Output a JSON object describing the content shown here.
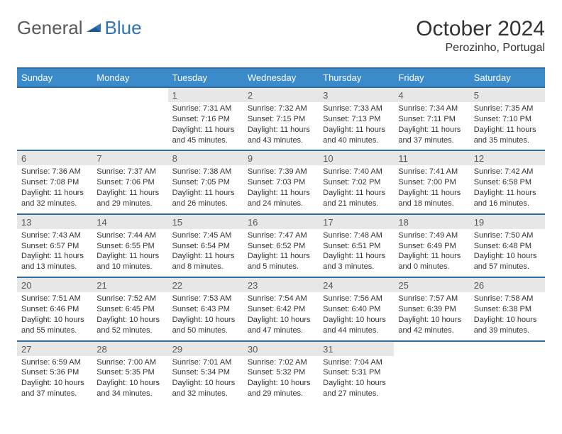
{
  "logo": {
    "word1": "General",
    "word2": "Blue"
  },
  "header": {
    "month_title": "October 2024",
    "location": "Perozinho, Portugal"
  },
  "colors": {
    "header_bg": "#3b8bcb",
    "header_border": "#2f6da3",
    "daynum_bg": "#e7e7e7",
    "text": "#333333",
    "logo_gray": "#5a5a5a",
    "logo_blue": "#2f75b5"
  },
  "days_of_week": [
    "Sunday",
    "Monday",
    "Tuesday",
    "Wednesday",
    "Thursday",
    "Friday",
    "Saturday"
  ],
  "weeks": [
    {
      "cells": [
        {
          "empty": true
        },
        {
          "empty": true
        },
        {
          "num": "1",
          "sunrise": "Sunrise: 7:31 AM",
          "sunset": "Sunset: 7:16 PM",
          "daylight": "Daylight: 11 hours and 45 minutes."
        },
        {
          "num": "2",
          "sunrise": "Sunrise: 7:32 AM",
          "sunset": "Sunset: 7:15 PM",
          "daylight": "Daylight: 11 hours and 43 minutes."
        },
        {
          "num": "3",
          "sunrise": "Sunrise: 7:33 AM",
          "sunset": "Sunset: 7:13 PM",
          "daylight": "Daylight: 11 hours and 40 minutes."
        },
        {
          "num": "4",
          "sunrise": "Sunrise: 7:34 AM",
          "sunset": "Sunset: 7:11 PM",
          "daylight": "Daylight: 11 hours and 37 minutes."
        },
        {
          "num": "5",
          "sunrise": "Sunrise: 7:35 AM",
          "sunset": "Sunset: 7:10 PM",
          "daylight": "Daylight: 11 hours and 35 minutes."
        }
      ]
    },
    {
      "cells": [
        {
          "num": "6",
          "sunrise": "Sunrise: 7:36 AM",
          "sunset": "Sunset: 7:08 PM",
          "daylight": "Daylight: 11 hours and 32 minutes."
        },
        {
          "num": "7",
          "sunrise": "Sunrise: 7:37 AM",
          "sunset": "Sunset: 7:06 PM",
          "daylight": "Daylight: 11 hours and 29 minutes."
        },
        {
          "num": "8",
          "sunrise": "Sunrise: 7:38 AM",
          "sunset": "Sunset: 7:05 PM",
          "daylight": "Daylight: 11 hours and 26 minutes."
        },
        {
          "num": "9",
          "sunrise": "Sunrise: 7:39 AM",
          "sunset": "Sunset: 7:03 PM",
          "daylight": "Daylight: 11 hours and 24 minutes."
        },
        {
          "num": "10",
          "sunrise": "Sunrise: 7:40 AM",
          "sunset": "Sunset: 7:02 PM",
          "daylight": "Daylight: 11 hours and 21 minutes."
        },
        {
          "num": "11",
          "sunrise": "Sunrise: 7:41 AM",
          "sunset": "Sunset: 7:00 PM",
          "daylight": "Daylight: 11 hours and 18 minutes."
        },
        {
          "num": "12",
          "sunrise": "Sunrise: 7:42 AM",
          "sunset": "Sunset: 6:58 PM",
          "daylight": "Daylight: 11 hours and 16 minutes."
        }
      ]
    },
    {
      "cells": [
        {
          "num": "13",
          "sunrise": "Sunrise: 7:43 AM",
          "sunset": "Sunset: 6:57 PM",
          "daylight": "Daylight: 11 hours and 13 minutes."
        },
        {
          "num": "14",
          "sunrise": "Sunrise: 7:44 AM",
          "sunset": "Sunset: 6:55 PM",
          "daylight": "Daylight: 11 hours and 10 minutes."
        },
        {
          "num": "15",
          "sunrise": "Sunrise: 7:45 AM",
          "sunset": "Sunset: 6:54 PM",
          "daylight": "Daylight: 11 hours and 8 minutes."
        },
        {
          "num": "16",
          "sunrise": "Sunrise: 7:47 AM",
          "sunset": "Sunset: 6:52 PM",
          "daylight": "Daylight: 11 hours and 5 minutes."
        },
        {
          "num": "17",
          "sunrise": "Sunrise: 7:48 AM",
          "sunset": "Sunset: 6:51 PM",
          "daylight": "Daylight: 11 hours and 3 minutes."
        },
        {
          "num": "18",
          "sunrise": "Sunrise: 7:49 AM",
          "sunset": "Sunset: 6:49 PM",
          "daylight": "Daylight: 11 hours and 0 minutes."
        },
        {
          "num": "19",
          "sunrise": "Sunrise: 7:50 AM",
          "sunset": "Sunset: 6:48 PM",
          "daylight": "Daylight: 10 hours and 57 minutes."
        }
      ]
    },
    {
      "cells": [
        {
          "num": "20",
          "sunrise": "Sunrise: 7:51 AM",
          "sunset": "Sunset: 6:46 PM",
          "daylight": "Daylight: 10 hours and 55 minutes."
        },
        {
          "num": "21",
          "sunrise": "Sunrise: 7:52 AM",
          "sunset": "Sunset: 6:45 PM",
          "daylight": "Daylight: 10 hours and 52 minutes."
        },
        {
          "num": "22",
          "sunrise": "Sunrise: 7:53 AM",
          "sunset": "Sunset: 6:43 PM",
          "daylight": "Daylight: 10 hours and 50 minutes."
        },
        {
          "num": "23",
          "sunrise": "Sunrise: 7:54 AM",
          "sunset": "Sunset: 6:42 PM",
          "daylight": "Daylight: 10 hours and 47 minutes."
        },
        {
          "num": "24",
          "sunrise": "Sunrise: 7:56 AM",
          "sunset": "Sunset: 6:40 PM",
          "daylight": "Daylight: 10 hours and 44 minutes."
        },
        {
          "num": "25",
          "sunrise": "Sunrise: 7:57 AM",
          "sunset": "Sunset: 6:39 PM",
          "daylight": "Daylight: 10 hours and 42 minutes."
        },
        {
          "num": "26",
          "sunrise": "Sunrise: 7:58 AM",
          "sunset": "Sunset: 6:38 PM",
          "daylight": "Daylight: 10 hours and 39 minutes."
        }
      ]
    },
    {
      "cells": [
        {
          "num": "27",
          "sunrise": "Sunrise: 6:59 AM",
          "sunset": "Sunset: 5:36 PM",
          "daylight": "Daylight: 10 hours and 37 minutes."
        },
        {
          "num": "28",
          "sunrise": "Sunrise: 7:00 AM",
          "sunset": "Sunset: 5:35 PM",
          "daylight": "Daylight: 10 hours and 34 minutes."
        },
        {
          "num": "29",
          "sunrise": "Sunrise: 7:01 AM",
          "sunset": "Sunset: 5:34 PM",
          "daylight": "Daylight: 10 hours and 32 minutes."
        },
        {
          "num": "30",
          "sunrise": "Sunrise: 7:02 AM",
          "sunset": "Sunset: 5:32 PM",
          "daylight": "Daylight: 10 hours and 29 minutes."
        },
        {
          "num": "31",
          "sunrise": "Sunrise: 7:04 AM",
          "sunset": "Sunset: 5:31 PM",
          "daylight": "Daylight: 10 hours and 27 minutes."
        },
        {
          "empty": true
        },
        {
          "empty": true
        }
      ]
    }
  ]
}
